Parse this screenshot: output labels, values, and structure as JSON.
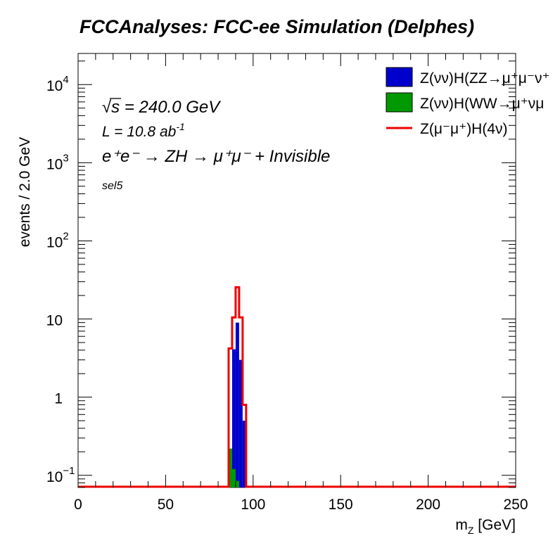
{
  "chart_data": {
    "type": "bar",
    "title": "FCCAnalyses: FCC-ee Simulation (Delphes)",
    "xlabel_main": "m",
    "xlabel_sub": "Z",
    "xlabel_unit": " [GeV]",
    "ylabel": "events / 2.0 GeV",
    "xlim": [
      0,
      250
    ],
    "ylim": [
      0.07,
      25000
    ],
    "yscale": "log",
    "bin_width": 2.0,
    "x_ticks": [
      0,
      50,
      100,
      150,
      200,
      250
    ],
    "x_tick_labels": [
      "0",
      "50",
      "100",
      "150",
      "200",
      "250"
    ],
    "y_ticks": [
      {
        "value": 0.1,
        "base": "10",
        "exp": "−1"
      },
      {
        "value": 1,
        "base": "1",
        "exp": ""
      },
      {
        "value": 10,
        "base": "10",
        "exp": ""
      },
      {
        "value": 100,
        "base": "10",
        "exp": "2"
      },
      {
        "value": 1000,
        "base": "10",
        "exp": "3"
      },
      {
        "value": 10000,
        "base": "10",
        "exp": "4"
      }
    ],
    "annotations": {
      "sqrt_s_symbol": "√",
      "sqrt_s_var": "s",
      "sqrt_s_rest": " = 240.0 GeV",
      "lumi_main": "L = 10.8 ab",
      "lumi_exp": "-1",
      "process": "e⁺e⁻ → ZH → μ⁺μ⁻ + Invisible",
      "selection": "sel5"
    },
    "legend_position": "top-right",
    "series": [
      {
        "name": "Z(νν̄)H(ZZ→μ⁺μ⁻ν⁺ν⁻)",
        "legend_label": "Z(νν)H(ZZ→μ⁺μ⁻ν⁺",
        "style": "fill",
        "color": "#0000cc",
        "bins": [
          [
            86,
            0.14
          ],
          [
            88,
            4.1
          ],
          [
            90,
            9.0
          ],
          [
            92,
            3.0
          ],
          [
            94,
            0.5
          ]
        ]
      },
      {
        "name": "Z(νν̄)H(WW→μ⁺νμ⁻ν)",
        "legend_label": "Z(νν)H(WW→μ⁺νμ",
        "style": "fill",
        "color": "#009900",
        "bins": [
          [
            86,
            0.22
          ],
          [
            88,
            0.12
          ],
          [
            90,
            0.085
          ]
        ]
      },
      {
        "name": "Z(μ⁻μ⁺)H(4ν)",
        "legend_label": "Z(μ⁻μ⁺)H(4ν)",
        "style": "line",
        "color": "#ee0000",
        "bins": [
          [
            86,
            4.2
          ],
          [
            88,
            10.5
          ],
          [
            90,
            25.5
          ],
          [
            92,
            10.5
          ],
          [
            94,
            0.8
          ]
        ]
      }
    ]
  }
}
